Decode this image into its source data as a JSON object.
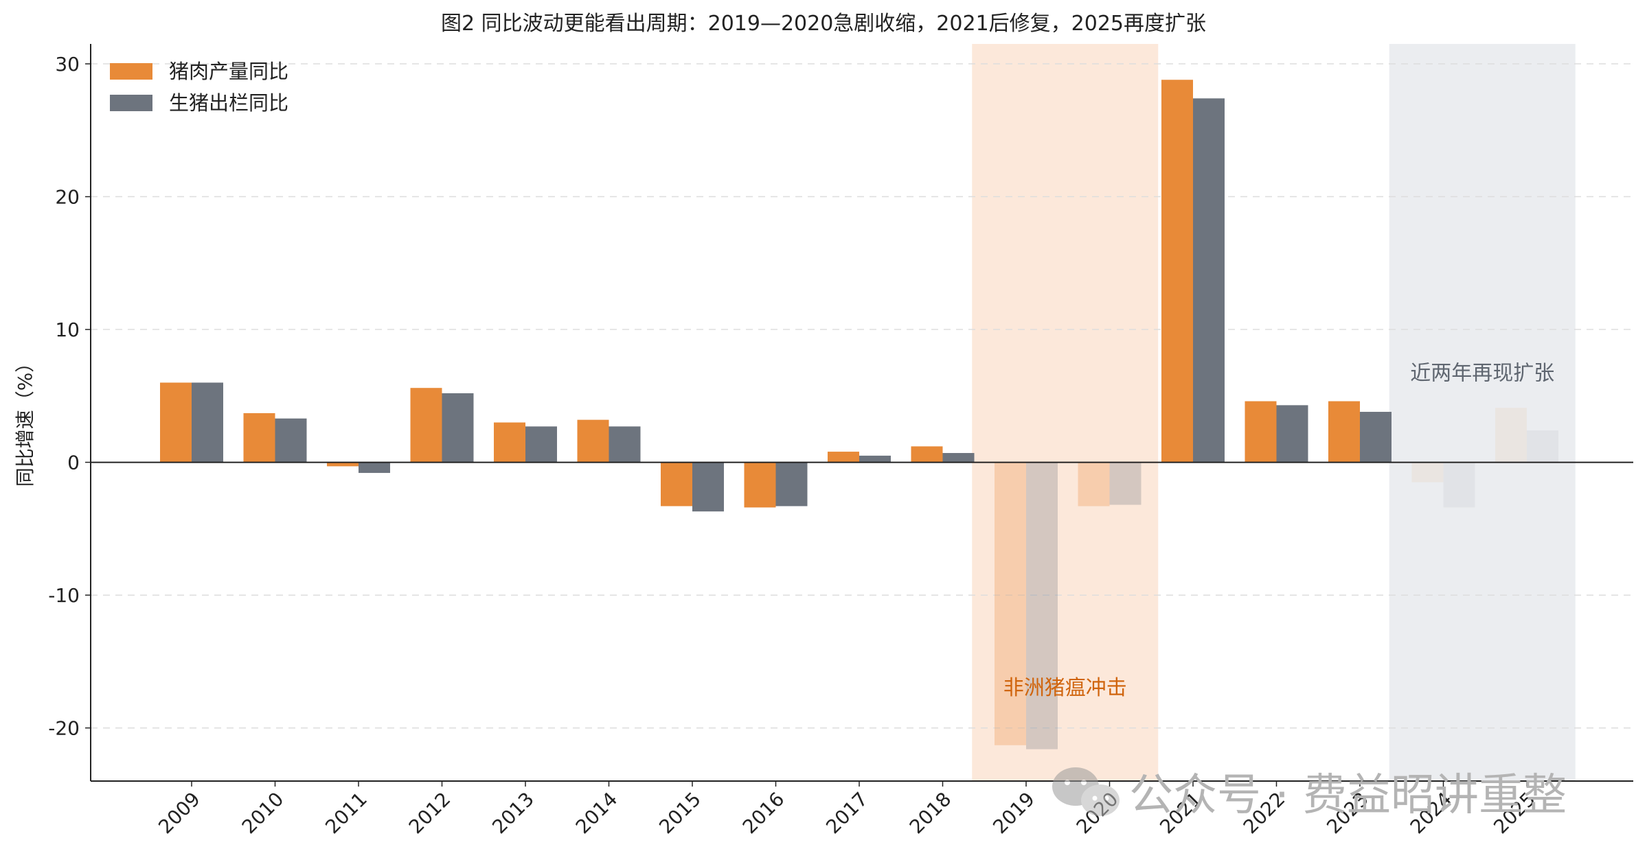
{
  "chart_data": {
    "type": "bar",
    "title": "图2 同比波动更能看出周期：2019—2020急剧收缩，2021后修复，2025再度扩张",
    "xlabel": "",
    "ylabel": "同比增速（%）",
    "ylim": [
      -24,
      31.5
    ],
    "yticks": [
      "30",
      "20",
      "10",
      "0",
      "-10",
      "-20"
    ],
    "ytick_values": [
      30,
      20,
      10,
      0,
      -10,
      -20
    ],
    "grid": true,
    "legend_position": "top-left",
    "categories": [
      "2009",
      "2010",
      "2011",
      "2012",
      "2013",
      "2014",
      "2015",
      "2016",
      "2017",
      "2018",
      "2019",
      "2020",
      "2021",
      "2022",
      "2023",
      "2024",
      "2025"
    ],
    "series": [
      {
        "name": "猪肉产量同比",
        "color": "#E88A38",
        "values": [
          6.0,
          3.7,
          -0.3,
          5.6,
          3.0,
          3.2,
          -3.3,
          -3.4,
          0.8,
          1.2,
          -21.3,
          -3.3,
          28.8,
          4.6,
          4.6,
          -1.5,
          4.1
        ]
      },
      {
        "name": "生猪出栏同比",
        "color": "#6D747E",
        "values": [
          6.0,
          3.3,
          -0.8,
          5.2,
          2.7,
          2.7,
          -3.7,
          -3.3,
          0.5,
          0.7,
          -21.6,
          -3.2,
          27.4,
          4.3,
          3.8,
          -3.4,
          2.4
        ]
      }
    ],
    "shaded_regions": [
      {
        "from": "2019",
        "to": "2020",
        "label": "非洲猪瘟冲击",
        "color": "#FCE8DA",
        "label_color": "#D0650E"
      },
      {
        "from": "2024",
        "to": "2025",
        "label": "近两年再现扩张",
        "color": "#EBEDF0",
        "label_color": "#5F6670"
      }
    ]
  },
  "watermark": {
    "text": "公众号 · 费益昭讲重整",
    "icon": "wechat-icon"
  }
}
